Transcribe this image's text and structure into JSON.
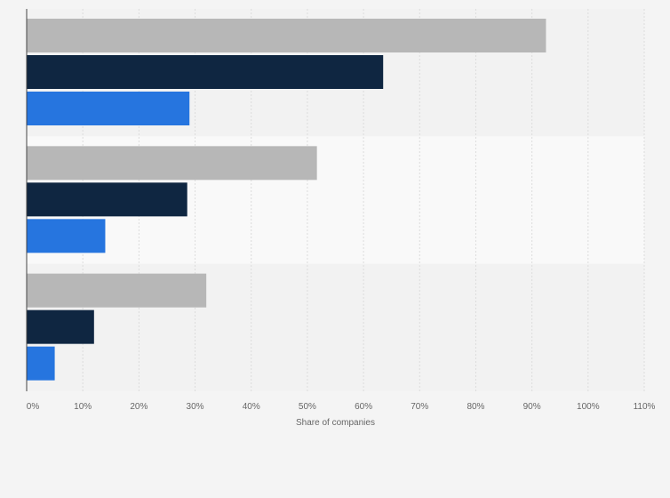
{
  "chart_data": {
    "type": "bar",
    "orientation": "horizontal",
    "categories": [
      "",
      "",
      ""
    ],
    "series": [
      {
        "values": [
          92.5,
          51.7,
          32.0
        ],
        "color": "#b7b7b7"
      },
      {
        "values": [
          63.5,
          28.6,
          12.0
        ],
        "color": "#0f2641"
      },
      {
        "values": [
          29.0,
          14.0,
          5.0
        ],
        "color": "#2675df"
      }
    ],
    "xlabel": "Share of companies",
    "ylabel": "",
    "xlim": [
      0,
      110
    ],
    "ticks": [
      0,
      10,
      20,
      30,
      40,
      50,
      60,
      70,
      80,
      90,
      100,
      110
    ],
    "tick_labels": [
      "0%",
      "10%",
      "20%",
      "30%",
      "40%",
      "50%",
      "60%",
      "70%",
      "80%",
      "90%",
      "100%",
      "110%"
    ],
    "grid": true,
    "legend": "none"
  },
  "colors": {
    "background": "#f4f4f4",
    "band_dark": "#f2f2f2",
    "band_light": "#f9f9f9",
    "gridline": "#dcdcdc",
    "axis": "#444444",
    "tick_text": "#666666"
  }
}
